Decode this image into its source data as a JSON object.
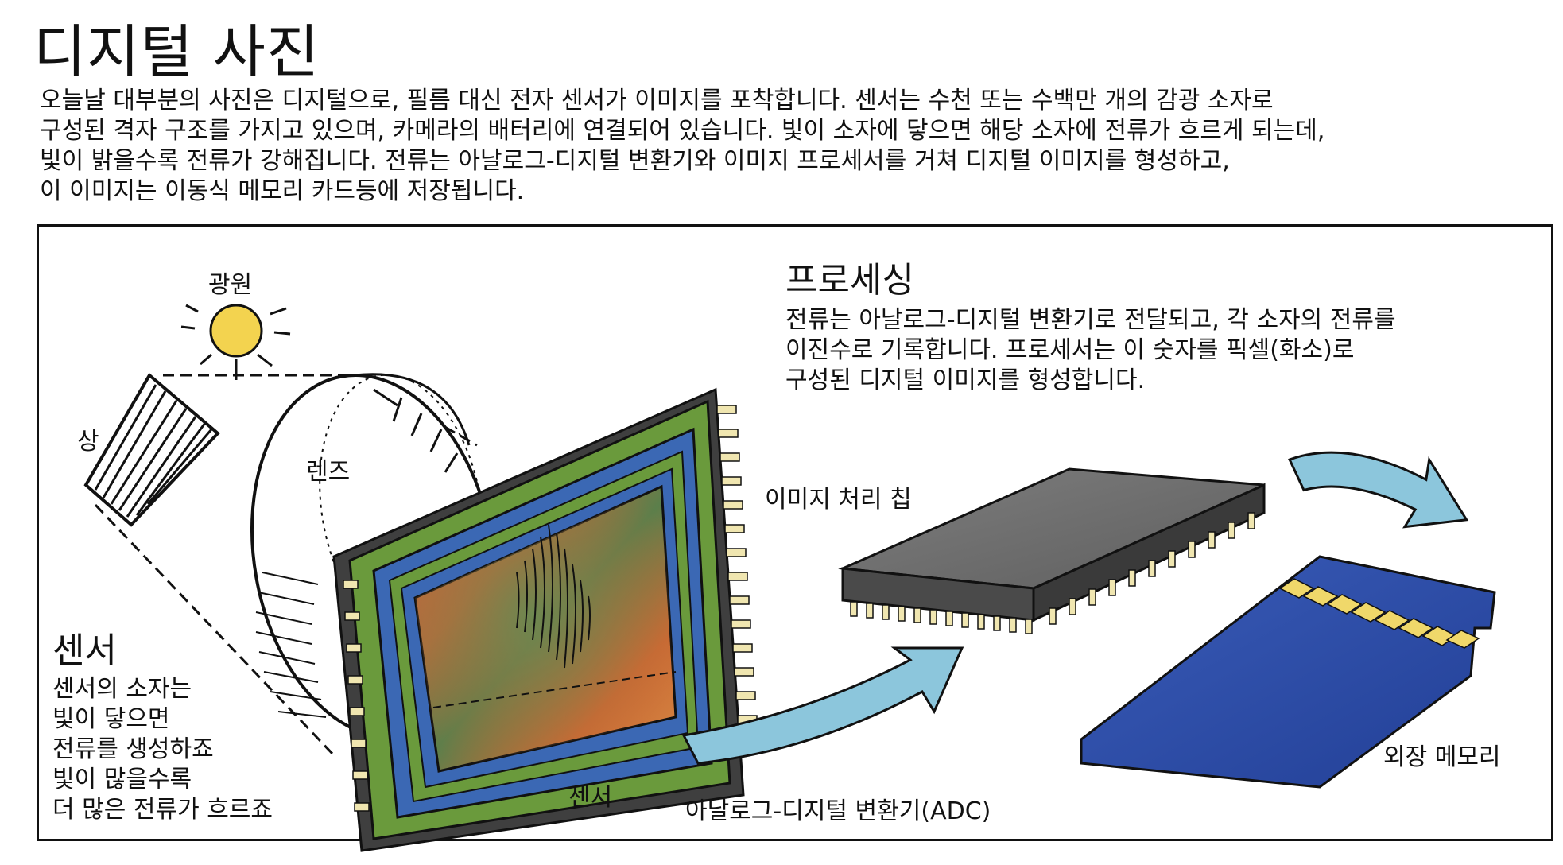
{
  "title": "디지털 사진",
  "intro_lines": [
    "오늘날 대부분의 사진은 디지털으로, 필름 대신 전자 센서가 이미지를 포착합니다. 센서는 수천 또는 수백만 개의 감광 소자로",
    "구성된 격자 구조를 가지고 있으며, 카메라의 배터리에 연결되어 있습니다. 빛이 소자에 닿으면 해당 소자에 전류가 흐르게 되는데,",
    "빛이 밝을수록 전류가 강해집니다. 전류는 아날로그-디지털 변환기와 이미지 프로세서를 거쳐 디지털 이미지를 형성하고,",
    "이 이미지는 이동식 메모리 카드등에 저장됩니다."
  ],
  "labels": {
    "light_source": "광원",
    "image": "상",
    "lens": "렌즈",
    "sensor": "센서",
    "chip": "이미지 처리 칩",
    "adc": "아날로그-디지털 변환기(ADC)",
    "external_memory": "외장 메모리"
  },
  "sensor_section": {
    "heading": "센서",
    "lines": [
      "센서의 소자는",
      "빛이 닿으면",
      "전류를 생성하죠",
      "빛이 많을수록",
      "더 많은 전류가 흐르죠"
    ]
  },
  "processing_section": {
    "heading": "프로세싱",
    "lines": [
      "전류는 아날로그-디지털 변환기로 전달되고, 각 소자의 전류를",
      "이진수로 기록합니다. 프로세서는 이 숫자를 픽셀(화소)로",
      "구성된 디지털 이미지를 형성합니다."
    ]
  },
  "colors": {
    "sun": "#f3d34f",
    "sensor_frame": "#6a9a3c",
    "sensor_inner": "#3b68b4",
    "chip": "#707070",
    "memory_card": "#2f4fa8",
    "arrow": "#8cc6dc"
  }
}
